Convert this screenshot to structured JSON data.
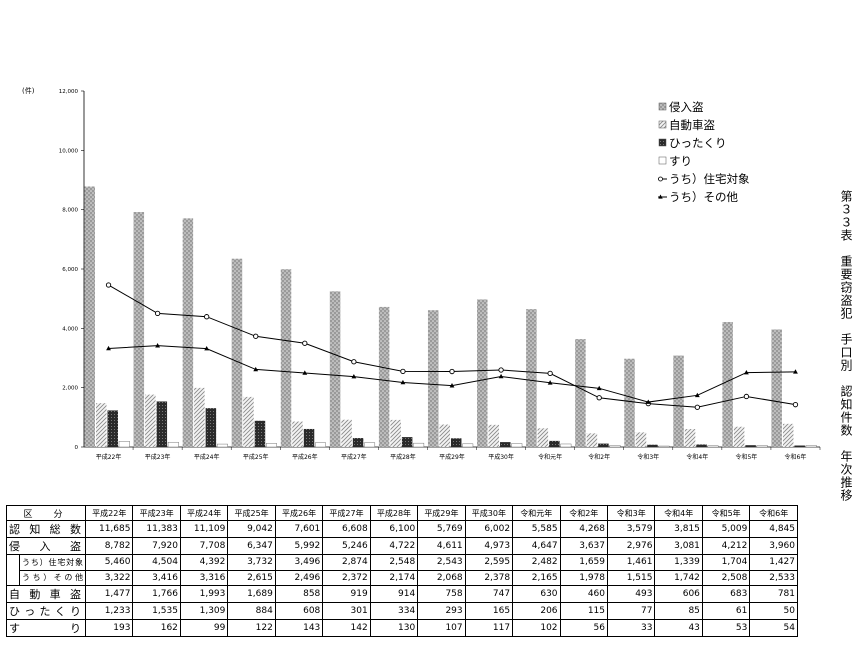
{
  "side_title": "第３３表　重要窃盗犯　手口別　認知件数　年次推移",
  "table": {
    "header_label": "区　分",
    "years": [
      "平成22年",
      "平成23年",
      "平成24年",
      "平成25年",
      "平成26年",
      "平成27年",
      "平成28年",
      "平成29年",
      "平成30年",
      "令和元年",
      "令和2年",
      "令和3年",
      "令和4年",
      "令和5年",
      "令和6年"
    ],
    "rows": [
      {
        "label": "認知総数",
        "values": [
          "11,685",
          "11,383",
          "11,109",
          "9,042",
          "7,601",
          "6,608",
          "6,100",
          "5,769",
          "6,002",
          "5,585",
          "4,268",
          "3,579",
          "3,815",
          "5,009",
          "4,845"
        ]
      },
      {
        "label": "侵入盗",
        "values": [
          "8,782",
          "7,920",
          "7,708",
          "6,347",
          "5,992",
          "5,246",
          "4,722",
          "4,611",
          "4,973",
          "4,647",
          "3,637",
          "2,976",
          "3,081",
          "4,212",
          "3,960"
        ]
      },
      {
        "label": "うち）住宅対象",
        "values": [
          "5,460",
          "4,504",
          "4,392",
          "3,732",
          "3,496",
          "2,874",
          "2,548",
          "2,543",
          "2,595",
          "2,482",
          "1,659",
          "1,461",
          "1,339",
          "1,704",
          "1,427"
        ]
      },
      {
        "label": "うち）その他",
        "values": [
          "3,322",
          "3,416",
          "3,316",
          "2,615",
          "2,496",
          "2,372",
          "2,174",
          "2,068",
          "2,378",
          "2,165",
          "1,978",
          "1,515",
          "1,742",
          "2,508",
          "2,533"
        ]
      },
      {
        "label": "自動車盗",
        "values": [
          "1,477",
          "1,766",
          "1,993",
          "1,689",
          "858",
          "919",
          "914",
          "758",
          "747",
          "630",
          "460",
          "493",
          "606",
          "683",
          "781"
        ]
      },
      {
        "label": "ひったくり",
        "values": [
          "1,233",
          "1,535",
          "1,309",
          "884",
          "608",
          "301",
          "334",
          "293",
          "165",
          "206",
          "115",
          "77",
          "85",
          "61",
          "50"
        ]
      },
      {
        "label": "すり",
        "values": [
          "193",
          "162",
          "99",
          "122",
          "143",
          "142",
          "130",
          "107",
          "117",
          "102",
          "56",
          "33",
          "43",
          "53",
          "54"
        ]
      }
    ]
  },
  "chart_data": {
    "type": "bar",
    "unit_label": "(件)",
    "ylim": [
      0,
      12000
    ],
    "yticks": [
      "0",
      "2,000",
      "4,000",
      "6,000",
      "8,000",
      "10,000",
      "12,000"
    ],
    "categories": [
      "平成22年",
      "平成23年",
      "平成24年",
      "平成25年",
      "平成26年",
      "平成27年",
      "平成28年",
      "平成29年",
      "平成30年",
      "令和元年",
      "令和2年",
      "令和3年",
      "令和4年",
      "令和5年",
      "令和6年"
    ],
    "legend_position": "top-right",
    "series": [
      {
        "name": "侵入盗",
        "kind": "bar",
        "pattern": "dots-dark",
        "values": [
          8782,
          7920,
          7708,
          6347,
          5992,
          5246,
          4722,
          4611,
          4973,
          4647,
          3637,
          2976,
          3081,
          4212,
          3960
        ]
      },
      {
        "name": "自動車盗",
        "kind": "bar",
        "pattern": "diagonal",
        "values": [
          1477,
          1766,
          1993,
          1689,
          858,
          919,
          914,
          758,
          747,
          630,
          460,
          493,
          606,
          683,
          781
        ]
      },
      {
        "name": "ひったくり",
        "kind": "bar",
        "pattern": "checker-dark",
        "values": [
          1233,
          1535,
          1309,
          884,
          608,
          301,
          334,
          293,
          165,
          206,
          115,
          77,
          85,
          61,
          50
        ]
      },
      {
        "name": "すり",
        "kind": "bar",
        "pattern": "white",
        "values": [
          193,
          162,
          99,
          122,
          143,
          142,
          130,
          107,
          117,
          102,
          56,
          33,
          43,
          53,
          54
        ]
      },
      {
        "name": "うち）住宅対象",
        "kind": "line",
        "marker": "circle",
        "values": [
          5460,
          4504,
          4392,
          3732,
          3496,
          2874,
          2548,
          2543,
          2595,
          2482,
          1659,
          1461,
          1339,
          1704,
          1427
        ]
      },
      {
        "name": "うち）その他",
        "kind": "line",
        "marker": "triangle",
        "values": [
          3322,
          3416,
          3316,
          2615,
          2496,
          2372,
          2174,
          2068,
          2378,
          2165,
          1978,
          1515,
          1742,
          2508,
          2533
        ]
      }
    ]
  }
}
